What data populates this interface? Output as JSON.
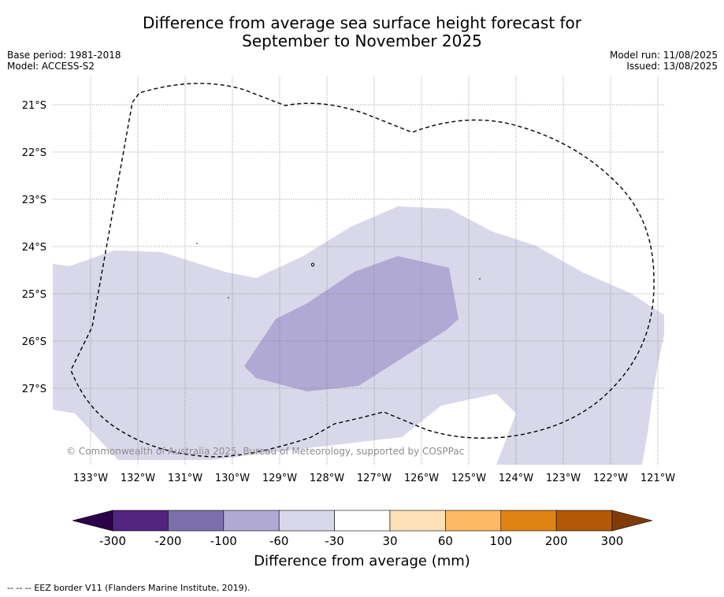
{
  "title_line1": "Difference from average sea surface height forecast for",
  "title_line2": "September to November 2025",
  "base_period": "Base period: 1981-2018",
  "model": "Model: ACCESS-S2",
  "model_run": "Model run: 11/08/2025",
  "issued": "Issued: 13/08/2025",
  "lat_labels": [
    "21°S",
    "22°S",
    "23°S",
    "24°S",
    "25°S",
    "26°S",
    "27°S"
  ],
  "lon_labels": [
    "133°W",
    "132°W",
    "131°W",
    "130°W",
    "129°W",
    "128°W",
    "127°W",
    "126°W",
    "125°W",
    "124°W",
    "123°W",
    "122°W",
    "121°W"
  ],
  "copyright": "© Commonwealth of Australia 2025, Bureau of Meteorology, supported by COSPPac",
  "colorbar": {
    "title": "Difference from average (mm)",
    "tick_labels": [
      "-300",
      "-200",
      "-100",
      "-60",
      "-30",
      "30",
      "60",
      "100",
      "200",
      "300"
    ],
    "colors": [
      "#52237f",
      "#7d6ead",
      "#b0a9d3",
      "#d9d8ea",
      "#ffffff",
      "#fee0b6",
      "#fdb863",
      "#e08214",
      "#b35806"
    ],
    "under_color": "#2d004b",
    "over_color": "#7f3b08"
  },
  "legend": {
    "eez_line_symbol": "-- -- --",
    "eez_label": "EEZ border V11 (Flanders Marine Institute, 2019)."
  }
}
